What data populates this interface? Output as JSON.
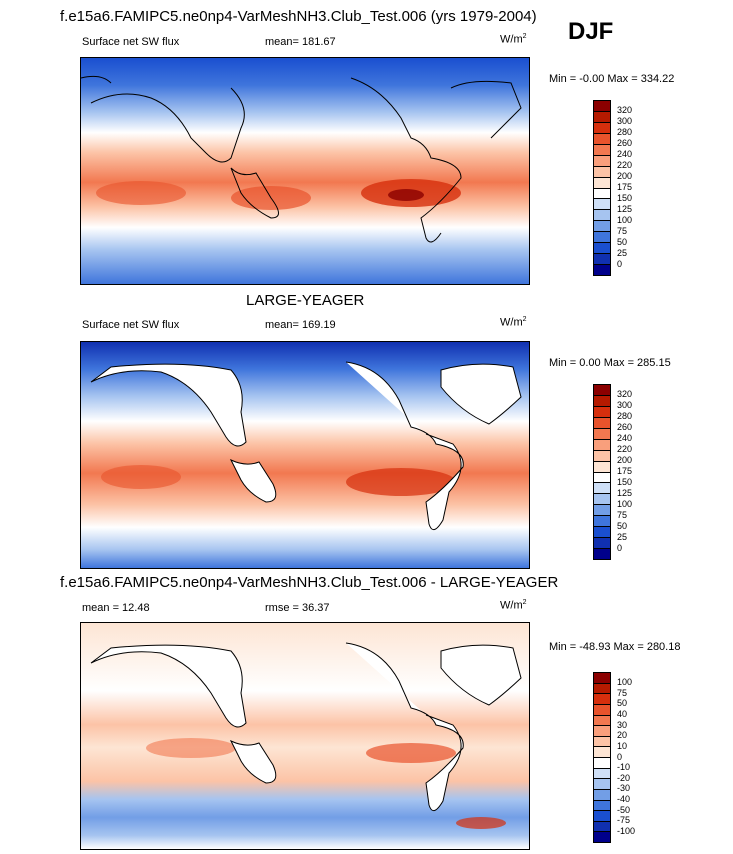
{
  "header": {
    "title": "f.e15a6.FAMIPC5.ne0np4-VarMeshNH3.Club_Test.006 (yrs 1979-2004)",
    "season": "DJF"
  },
  "panel1": {
    "left_label": "Surface net SW flux",
    "mean_label": "mean= 181.67",
    "unit_base": "W/m",
    "unit_exp": "2",
    "minmax": "Min =  -0.00 Max = 334.22",
    "colorbar": {
      "ticks": [
        "320",
        "300",
        "280",
        "260",
        "240",
        "220",
        "200",
        "175",
        "150",
        "125",
        "100",
        "75",
        "50",
        "25",
        "0"
      ],
      "colors": [
        "#8b0000",
        "#b51a00",
        "#d62f0d",
        "#e8532c",
        "#f27850",
        "#f99f7c",
        "#fcc3a6",
        "#fde5d4",
        "#ffffff",
        "#cfe0f7",
        "#a6c4f0",
        "#729ee6",
        "#3f75dc",
        "#1a4fd0",
        "#1030b0",
        "#00008b"
      ]
    }
  },
  "panel2": {
    "title": "LARGE-YEAGER",
    "left_label": "Surface net SW flux",
    "mean_label": "mean= 169.19",
    "unit_base": "W/m",
    "unit_exp": "2",
    "minmax": "Min =   0.00 Max = 285.15",
    "colorbar": {
      "ticks": [
        "320",
        "300",
        "280",
        "260",
        "240",
        "220",
        "200",
        "175",
        "150",
        "125",
        "100",
        "75",
        "50",
        "25",
        "0"
      ],
      "colors": [
        "#8b0000",
        "#b51a00",
        "#d62f0d",
        "#e8532c",
        "#f27850",
        "#f99f7c",
        "#fcc3a6",
        "#fde5d4",
        "#ffffff",
        "#cfe0f7",
        "#a6c4f0",
        "#729ee6",
        "#3f75dc",
        "#1a4fd0",
        "#1030b0",
        "#00008b"
      ]
    }
  },
  "panel3": {
    "title": "f.e15a6.FAMIPC5.ne0np4-VarMeshNH3.Club_Test.006 - LARGE-YEAGER",
    "mean_label": "mean =  12.48",
    "rmse_label": "rmse =  36.37",
    "unit_base": "W/m",
    "unit_exp": "2",
    "minmax": "Min = -48.93 Max = 280.18",
    "colorbar": {
      "ticks": [
        "100",
        "75",
        "50",
        "40",
        "30",
        "20",
        "10",
        "0",
        "-10",
        "-20",
        "-30",
        "-40",
        "-50",
        "-75",
        "-100"
      ],
      "colors": [
        "#8b0000",
        "#b51a00",
        "#d62f0d",
        "#e8532c",
        "#f27850",
        "#f99f7c",
        "#fcc3a6",
        "#fde5d4",
        "#ffffff",
        "#cfe0f7",
        "#a6c4f0",
        "#729ee6",
        "#3f75dc",
        "#1a4fd0",
        "#1030b0",
        "#00008b"
      ]
    }
  }
}
